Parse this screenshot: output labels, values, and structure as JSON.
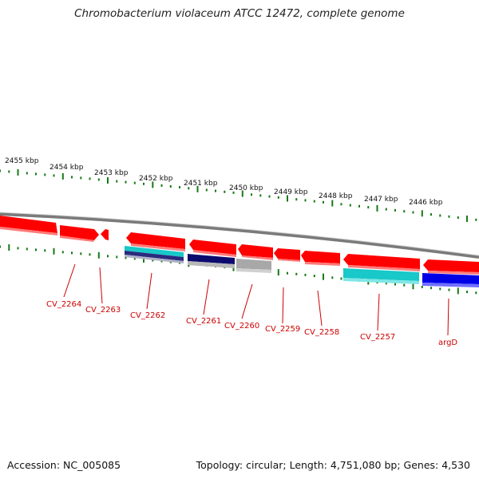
{
  "title": "Chromobacterium violaceum ATCC 12472, complete genome",
  "accession": "Accession: NC_005085",
  "topology": "Topology: circular; Length: 4,751,080 bp; Genes: 4,530",
  "colors": {
    "gene_red": "#ff0000",
    "gene_red_light": "#ff7a7a",
    "tick_green": "#157a15",
    "backbone_gray": "#7a7a7a",
    "label_red": "#cc0000",
    "teal": "#19c8c8",
    "navy": "#0b0b6e",
    "blue": "#0000e6",
    "gray": "#a8a8a8"
  },
  "kbp_labels": [
    "2455 kbp",
    "2454 kbp",
    "2453 kbp",
    "2452 kbp",
    "2451 kbp",
    "2450 kbp",
    "2449 kbp",
    "2448 kbp",
    "2447 kbp",
    "2446 kbp"
  ],
  "gene_labels": [
    "CV_2264",
    "CV_2263",
    "CV_2262",
    "CV_2261",
    "CV_2260",
    "CV_2259",
    "CV_2258",
    "CV_2257",
    "argD"
  ]
}
